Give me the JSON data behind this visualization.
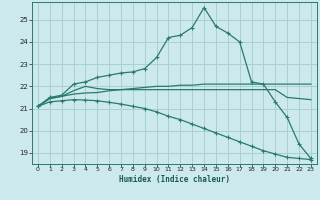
{
  "xlabel": "Humidex (Indice chaleur)",
  "bg_color": "#cce9ed",
  "grid_color": "#aacfd4",
  "line_color": "#2a7a6e",
  "xlim": [
    -0.5,
    23.5
  ],
  "ylim": [
    18.5,
    25.8
  ],
  "xticks": [
    0,
    1,
    2,
    3,
    4,
    5,
    6,
    7,
    8,
    9,
    10,
    11,
    12,
    13,
    14,
    15,
    16,
    17,
    18,
    19,
    20,
    21,
    22,
    23
  ],
  "yticks": [
    19,
    20,
    21,
    22,
    23,
    24,
    25
  ],
  "line1_x": [
    0,
    1,
    2,
    3,
    4,
    5,
    6,
    7,
    8,
    9,
    10,
    11,
    12,
    13,
    14,
    15,
    16,
    17,
    18,
    19,
    20,
    21,
    22,
    23
  ],
  "line1_y": [
    21.1,
    21.5,
    21.6,
    22.1,
    22.2,
    22.4,
    22.5,
    22.6,
    22.65,
    22.8,
    23.3,
    24.2,
    24.3,
    24.65,
    25.55,
    24.7,
    24.4,
    24.0,
    22.2,
    22.1,
    21.3,
    20.6,
    19.4,
    18.75
  ],
  "line2_x": [
    0,
    1,
    2,
    3,
    4,
    5,
    6,
    7,
    8,
    9,
    10,
    11,
    12,
    13,
    14,
    15,
    16,
    17,
    18,
    19,
    20,
    21,
    22,
    23
  ],
  "line2_y": [
    21.1,
    21.45,
    21.55,
    21.65,
    21.7,
    21.72,
    21.8,
    21.85,
    21.9,
    21.95,
    22.0,
    22.0,
    22.05,
    22.05,
    22.1,
    22.1,
    22.1,
    22.1,
    22.1,
    22.1,
    22.1,
    22.1,
    22.1,
    22.1
  ],
  "line3_x": [
    0,
    1,
    2,
    3,
    4,
    5,
    6,
    7,
    8,
    9,
    10,
    11,
    12,
    13,
    14,
    15,
    16,
    17,
    18,
    19,
    20,
    21,
    22,
    23
  ],
  "line3_y": [
    21.1,
    21.45,
    21.55,
    21.8,
    22.0,
    21.9,
    21.85,
    21.85,
    21.85,
    21.85,
    21.85,
    21.85,
    21.85,
    21.85,
    21.85,
    21.85,
    21.85,
    21.85,
    21.85,
    21.85,
    21.85,
    21.5,
    21.45,
    21.4
  ],
  "line4_x": [
    0,
    1,
    2,
    3,
    4,
    5,
    6,
    7,
    8,
    9,
    10,
    11,
    12,
    13,
    14,
    15,
    16,
    17,
    18,
    19,
    20,
    21,
    22,
    23
  ],
  "line4_y": [
    21.1,
    21.3,
    21.35,
    21.4,
    21.38,
    21.35,
    21.28,
    21.2,
    21.1,
    21.0,
    20.85,
    20.65,
    20.5,
    20.3,
    20.1,
    19.9,
    19.7,
    19.5,
    19.3,
    19.1,
    18.95,
    18.8,
    18.75,
    18.7
  ]
}
